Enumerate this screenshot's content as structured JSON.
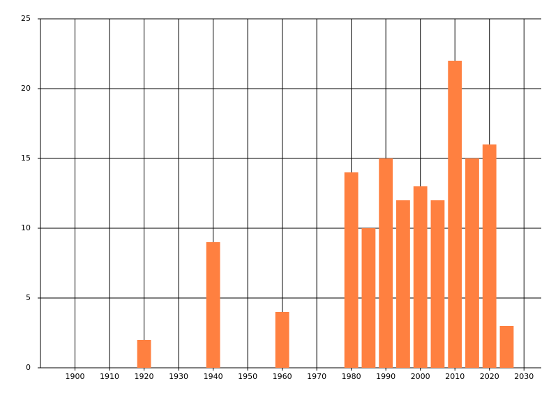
{
  "chart_data": {
    "type": "bar",
    "x": [
      1920,
      1940,
      1960,
      1980,
      1985,
      1990,
      1995,
      2000,
      2005,
      2010,
      2015,
      2020,
      2025
    ],
    "values": [
      2,
      9,
      4,
      14,
      10,
      15,
      12,
      13,
      12,
      22,
      15,
      16,
      3
    ],
    "color": "#ff8040",
    "xlim": [
      1890,
      2035
    ],
    "xticks": [
      1900,
      1910,
      1920,
      1930,
      1940,
      1950,
      1960,
      1970,
      1980,
      1990,
      2000,
      2010,
      2020,
      2030
    ],
    "ylim": [
      0,
      25
    ],
    "yticks": [
      0,
      5,
      10,
      15,
      20,
      25
    ],
    "grid": true
  }
}
